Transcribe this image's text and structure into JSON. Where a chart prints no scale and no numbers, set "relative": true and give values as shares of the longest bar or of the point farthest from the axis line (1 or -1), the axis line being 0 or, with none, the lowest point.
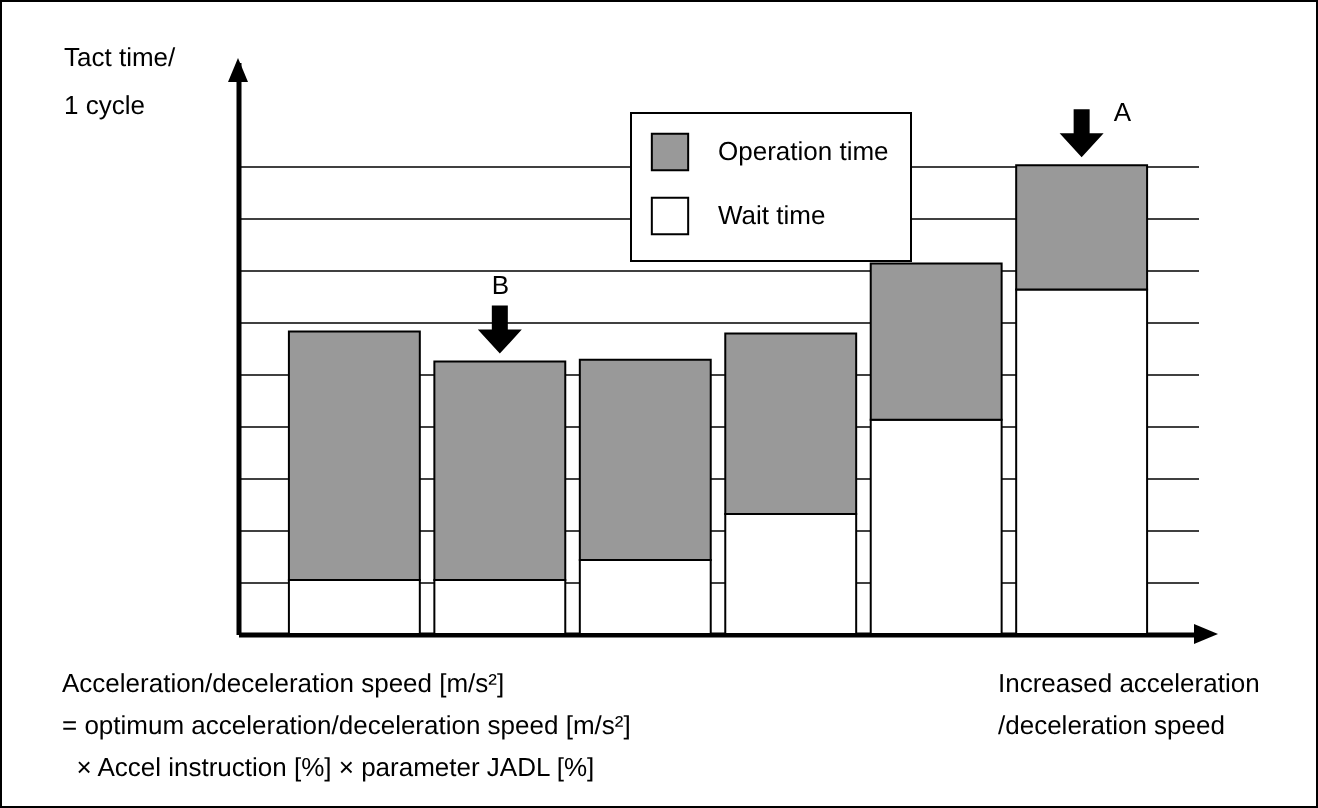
{
  "chart_data": {
    "type": "bar",
    "stacked": true,
    "relative": true,
    "ylabel": "Tact time/\n1 cycle",
    "xlabel": "Increased acceleration\n/deceleration speed",
    "categories": [
      null,
      null,
      null,
      null,
      null,
      null
    ],
    "series": [
      {
        "name": "Wait time",
        "color": "#ffffff",
        "values": [
          0.115,
          0.115,
          0.158,
          0.256,
          0.457,
          0.735
        ]
      },
      {
        "name": "Operation time",
        "color": "#999999",
        "values": [
          0.53,
          0.466,
          0.427,
          0.385,
          0.333,
          0.265
        ]
      }
    ],
    "annotations": [
      "A",
      "B",
      "Acceleration/deceleration speed [m/s²]\n= optimum acceleration/deceleration speed [m/s²]\n  × Accel instruction [%] × parameter JADL [%]"
    ],
    "grid": "y",
    "legend": "top right"
  }
}
